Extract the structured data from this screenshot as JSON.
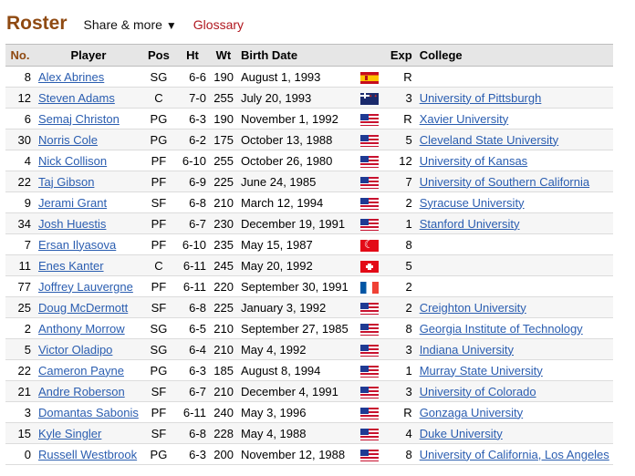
{
  "header": {
    "title": "Roster",
    "share_label": "Share & more",
    "share_caret": "▼",
    "glossary_label": "Glossary"
  },
  "columns": {
    "no": "No.",
    "player": "Player",
    "pos": "Pos",
    "ht": "Ht",
    "wt": "Wt",
    "birth": "Birth Date",
    "flag": "",
    "exp": "Exp",
    "college": "College"
  },
  "rows": [
    {
      "no": "8",
      "player": "Alex Abrines",
      "pos": "SG",
      "ht": "6-6",
      "wt": "190",
      "birth": "August 1, 1993",
      "flag": "es",
      "exp": "R",
      "college": ""
    },
    {
      "no": "12",
      "player": "Steven Adams",
      "pos": "C",
      "ht": "7-0",
      "wt": "255",
      "birth": "July 20, 1993",
      "flag": "nz",
      "exp": "3",
      "college": "University of Pittsburgh"
    },
    {
      "no": "6",
      "player": "Semaj Christon",
      "pos": "PG",
      "ht": "6-3",
      "wt": "190",
      "birth": "November 1, 1992",
      "flag": "us",
      "exp": "R",
      "college": "Xavier University"
    },
    {
      "no": "30",
      "player": "Norris Cole",
      "pos": "PG",
      "ht": "6-2",
      "wt": "175",
      "birth": "October 13, 1988",
      "flag": "us",
      "exp": "5",
      "college": "Cleveland State University"
    },
    {
      "no": "4",
      "player": "Nick Collison",
      "pos": "PF",
      "ht": "6-10",
      "wt": "255",
      "birth": "October 26, 1980",
      "flag": "us",
      "exp": "12",
      "college": "University of Kansas"
    },
    {
      "no": "22",
      "player": "Taj Gibson",
      "pos": "PF",
      "ht": "6-9",
      "wt": "225",
      "birth": "June 24, 1985",
      "flag": "us",
      "exp": "7",
      "college": "University of Southern California"
    },
    {
      "no": "9",
      "player": "Jerami Grant",
      "pos": "SF",
      "ht": "6-8",
      "wt": "210",
      "birth": "March 12, 1994",
      "flag": "us",
      "exp": "2",
      "college": "Syracuse University"
    },
    {
      "no": "34",
      "player": "Josh Huestis",
      "pos": "PF",
      "ht": "6-7",
      "wt": "230",
      "birth": "December 19, 1991",
      "flag": "us",
      "exp": "1",
      "college": "Stanford University"
    },
    {
      "no": "7",
      "player": "Ersan Ilyasova",
      "pos": "PF",
      "ht": "6-10",
      "wt": "235",
      "birth": "May 15, 1987",
      "flag": "tr",
      "exp": "8",
      "college": ""
    },
    {
      "no": "11",
      "player": "Enes Kanter",
      "pos": "C",
      "ht": "6-11",
      "wt": "245",
      "birth": "May 20, 1992",
      "flag": "ch",
      "exp": "5",
      "college": ""
    },
    {
      "no": "77",
      "player": "Joffrey Lauvergne",
      "pos": "PF",
      "ht": "6-11",
      "wt": "220",
      "birth": "September 30, 1991",
      "flag": "fr",
      "exp": "2",
      "college": ""
    },
    {
      "no": "25",
      "player": "Doug McDermott",
      "pos": "SF",
      "ht": "6-8",
      "wt": "225",
      "birth": "January 3, 1992",
      "flag": "us",
      "exp": "2",
      "college": "Creighton University"
    },
    {
      "no": "2",
      "player": "Anthony Morrow",
      "pos": "SG",
      "ht": "6-5",
      "wt": "210",
      "birth": "September 27, 1985",
      "flag": "us",
      "exp": "8",
      "college": "Georgia Institute of Technology"
    },
    {
      "no": "5",
      "player": "Victor Oladipo",
      "pos": "SG",
      "ht": "6-4",
      "wt": "210",
      "birth": "May 4, 1992",
      "flag": "us",
      "exp": "3",
      "college": "Indiana University"
    },
    {
      "no": "22",
      "player": "Cameron Payne",
      "pos": "PG",
      "ht": "6-3",
      "wt": "185",
      "birth": "August 8, 1994",
      "flag": "us",
      "exp": "1",
      "college": "Murray State University"
    },
    {
      "no": "21",
      "player": "Andre Roberson",
      "pos": "SF",
      "ht": "6-7",
      "wt": "210",
      "birth": "December 4, 1991",
      "flag": "us",
      "exp": "3",
      "college": "University of Colorado"
    },
    {
      "no": "3",
      "player": "Domantas Sabonis",
      "pos": "PF",
      "ht": "6-11",
      "wt": "240",
      "birth": "May 3, 1996",
      "flag": "us",
      "exp": "R",
      "college": "Gonzaga University"
    },
    {
      "no": "15",
      "player": "Kyle Singler",
      "pos": "SF",
      "ht": "6-8",
      "wt": "228",
      "birth": "May 4, 1988",
      "flag": "us",
      "exp": "4",
      "college": "Duke University"
    },
    {
      "no": "0",
      "player": "Russell Westbrook",
      "pos": "PG",
      "ht": "6-3",
      "wt": "200",
      "birth": "November 12, 1988",
      "flag": "us",
      "exp": "8",
      "college": "University of California, Los Angeles"
    }
  ],
  "colors": {
    "title": "#8f4a12",
    "link": "#2a5db0",
    "glossary": "#b0171f",
    "header_bg": "#e6e6e6"
  }
}
